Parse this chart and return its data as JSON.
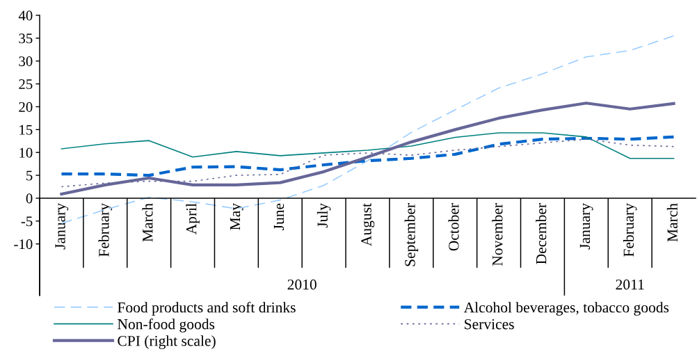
{
  "chart_data": {
    "type": "line",
    "categories": [
      "January",
      "February",
      "March",
      "April",
      "May",
      "June",
      "July",
      "August",
      "September",
      "October",
      "November",
      "December",
      "January",
      "February",
      "March"
    ],
    "series": [
      {
        "name": "Food products and soft drinks",
        "color": "#99ccff",
        "line_style": "dashed",
        "values": [
          -5.5,
          -2.5,
          0.2,
          -0.8,
          -2.3,
          -0.4,
          2.8,
          8.2,
          14.4,
          19.3,
          24.1,
          27.2,
          30.9,
          32.3,
          35.5
        ]
      },
      {
        "name": "Alcohol beverages, tobacco goods",
        "color": "#0066cc",
        "line_style": "dashed",
        "values": [
          5.3,
          5.3,
          5.0,
          6.8,
          6.9,
          6.2,
          7.3,
          8.2,
          8.7,
          9.6,
          11.8,
          12.9,
          13.1,
          12.9,
          13.4
        ]
      },
      {
        "name": "Non-food goods",
        "color": "#008080",
        "line_style": "solid",
        "values": [
          10.8,
          11.9,
          12.6,
          9.0,
          10.2,
          9.3,
          9.9,
          10.5,
          11.4,
          13.3,
          14.3,
          14.3,
          13.4,
          8.7,
          8.7
        ]
      },
      {
        "name": "Services",
        "color": "#666699",
        "line_style": "dotted",
        "values": [
          2.5,
          3.3,
          3.7,
          3.7,
          5.0,
          5.2,
          9.4,
          9.9,
          9.4,
          10.5,
          11.3,
          12.1,
          12.9,
          11.6,
          11.3
        ]
      },
      {
        "name": "CPI (right scale)",
        "color": "#666699",
        "line_style": "solid",
        "values": [
          0.9,
          2.9,
          4.4,
          2.9,
          2.9,
          3.4,
          5.8,
          9.0,
          12.3,
          15.0,
          17.5,
          19.3,
          20.8,
          19.5,
          20.7
        ]
      }
    ],
    "ylim": [
      -21.3,
      40
    ],
    "yticks": [
      -10,
      -5,
      0,
      5,
      10,
      15,
      20,
      25,
      30,
      35,
      40
    ],
    "annotations": [
      "2010",
      "2011"
    ],
    "grid": false,
    "legend": "bottom"
  }
}
